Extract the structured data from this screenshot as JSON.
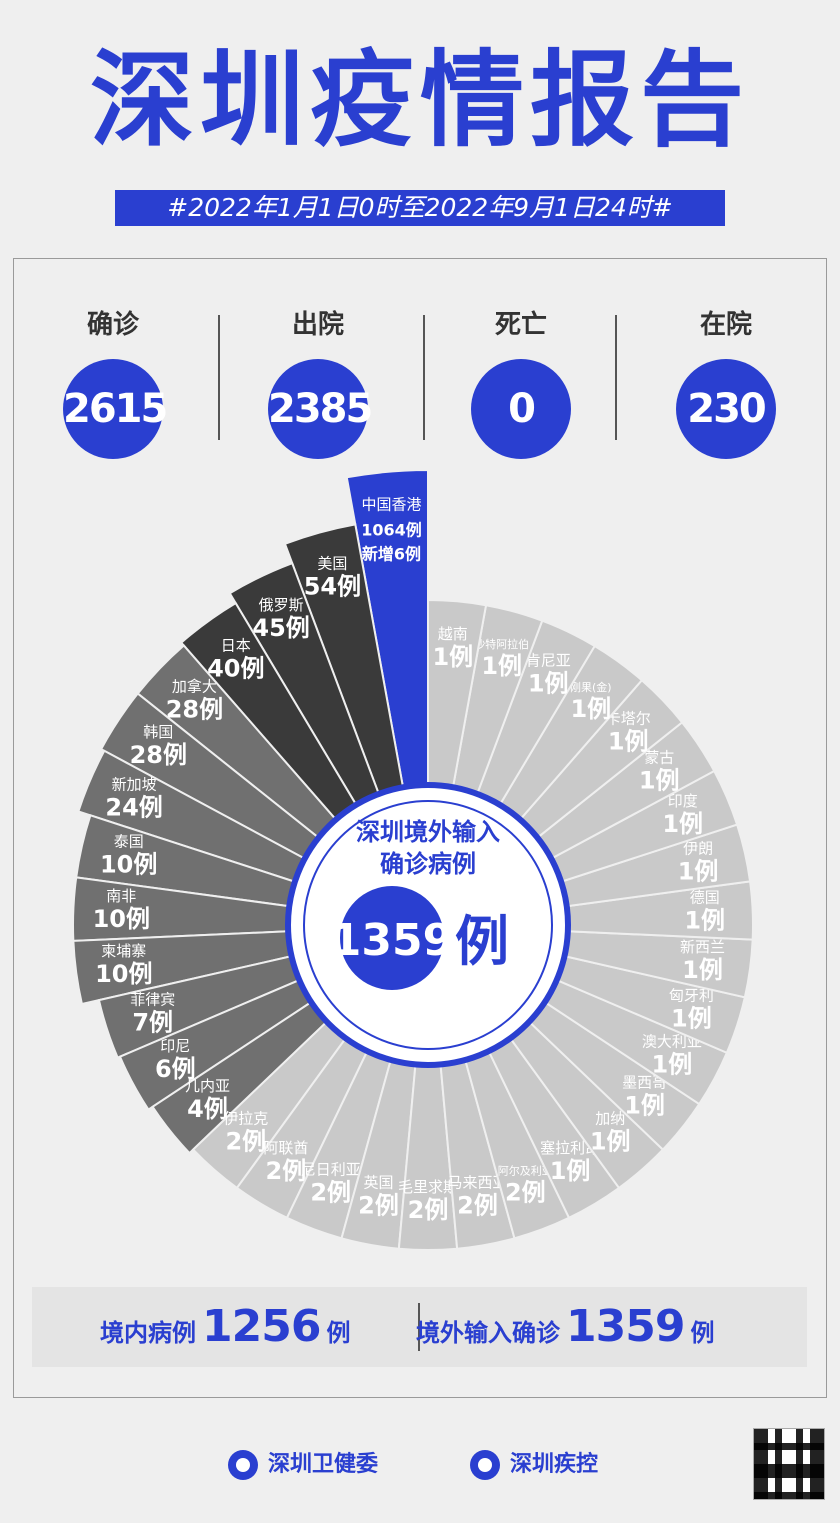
{
  "header": {
    "title": "深圳疫情报告",
    "period": "#2022年1月1日0时至2022年9月1日24时#"
  },
  "stats": [
    {
      "label": "确诊",
      "value": "2615"
    },
    {
      "label": "出院",
      "value": "2385"
    },
    {
      "label": "死亡",
      "value": "0"
    },
    {
      "label": "在院",
      "value": "230"
    }
  ],
  "center": {
    "line1": "深圳境外输入",
    "line2": "确诊病例",
    "value": "1359",
    "unit": "例"
  },
  "chart_data": {
    "type": "bar",
    "categories": [
      "中国香港",
      "美国",
      "俄罗斯",
      "日本",
      "加拿大",
      "韩国",
      "新加坡",
      "泰国",
      "南非",
      "柬埔寨",
      "菲律宾",
      "印尼",
      "几内亚",
      "伊拉克",
      "阿联酋",
      "尼日利亚",
      "英国",
      "毛里求斯",
      "马来西亚",
      "阿尔及利亚",
      "塞拉利昂",
      "加纳",
      "墨西哥",
      "澳大利亚",
      "匈牙利",
      "新西兰",
      "德国",
      "伊朗",
      "印度",
      "蒙古",
      "卡塔尔",
      "刚果(金)",
      "肯尼亚",
      "沙特阿拉伯",
      "越南"
    ],
    "values": [
      1064,
      54,
      45,
      40,
      28,
      28,
      24,
      10,
      10,
      10,
      7,
      6,
      4,
      2,
      2,
      2,
      2,
      2,
      2,
      2,
      1,
      1,
      1,
      1,
      1,
      1,
      1,
      1,
      1,
      1,
      1,
      1,
      1,
      1,
      1
    ],
    "value_labels": [
      "1064例",
      "54例",
      "45例",
      "40例",
      "28例",
      "28例",
      "24例",
      "10例",
      "10例",
      "10例",
      "7例",
      "6例",
      "4例",
      "2例",
      "2例",
      "2例",
      "2例",
      "2例",
      "2例",
      "2例",
      "1例",
      "1例",
      "1例",
      "1例",
      "1例",
      "1例",
      "1例",
      "1例",
      "1例",
      "1例",
      "1例",
      "1例",
      "1例",
      "1例",
      "1例"
    ],
    "highlight": {
      "category": "中国香港",
      "note": "新增6例"
    },
    "colors": {
      "highlight": "#2a3fd0",
      "dark": "#3a3a3a",
      "mid": "#707070",
      "light": "#c9c9c9",
      "text_light": "#ffffff"
    }
  },
  "summary": {
    "domestic_label": "境内病例",
    "domestic_value": "1256",
    "domestic_unit": "例",
    "imported_label": "境外输入确诊",
    "imported_value": "1359",
    "imported_unit": "例"
  },
  "footer": {
    "org1": "深圳卫健委",
    "org2": "深圳疾控"
  }
}
